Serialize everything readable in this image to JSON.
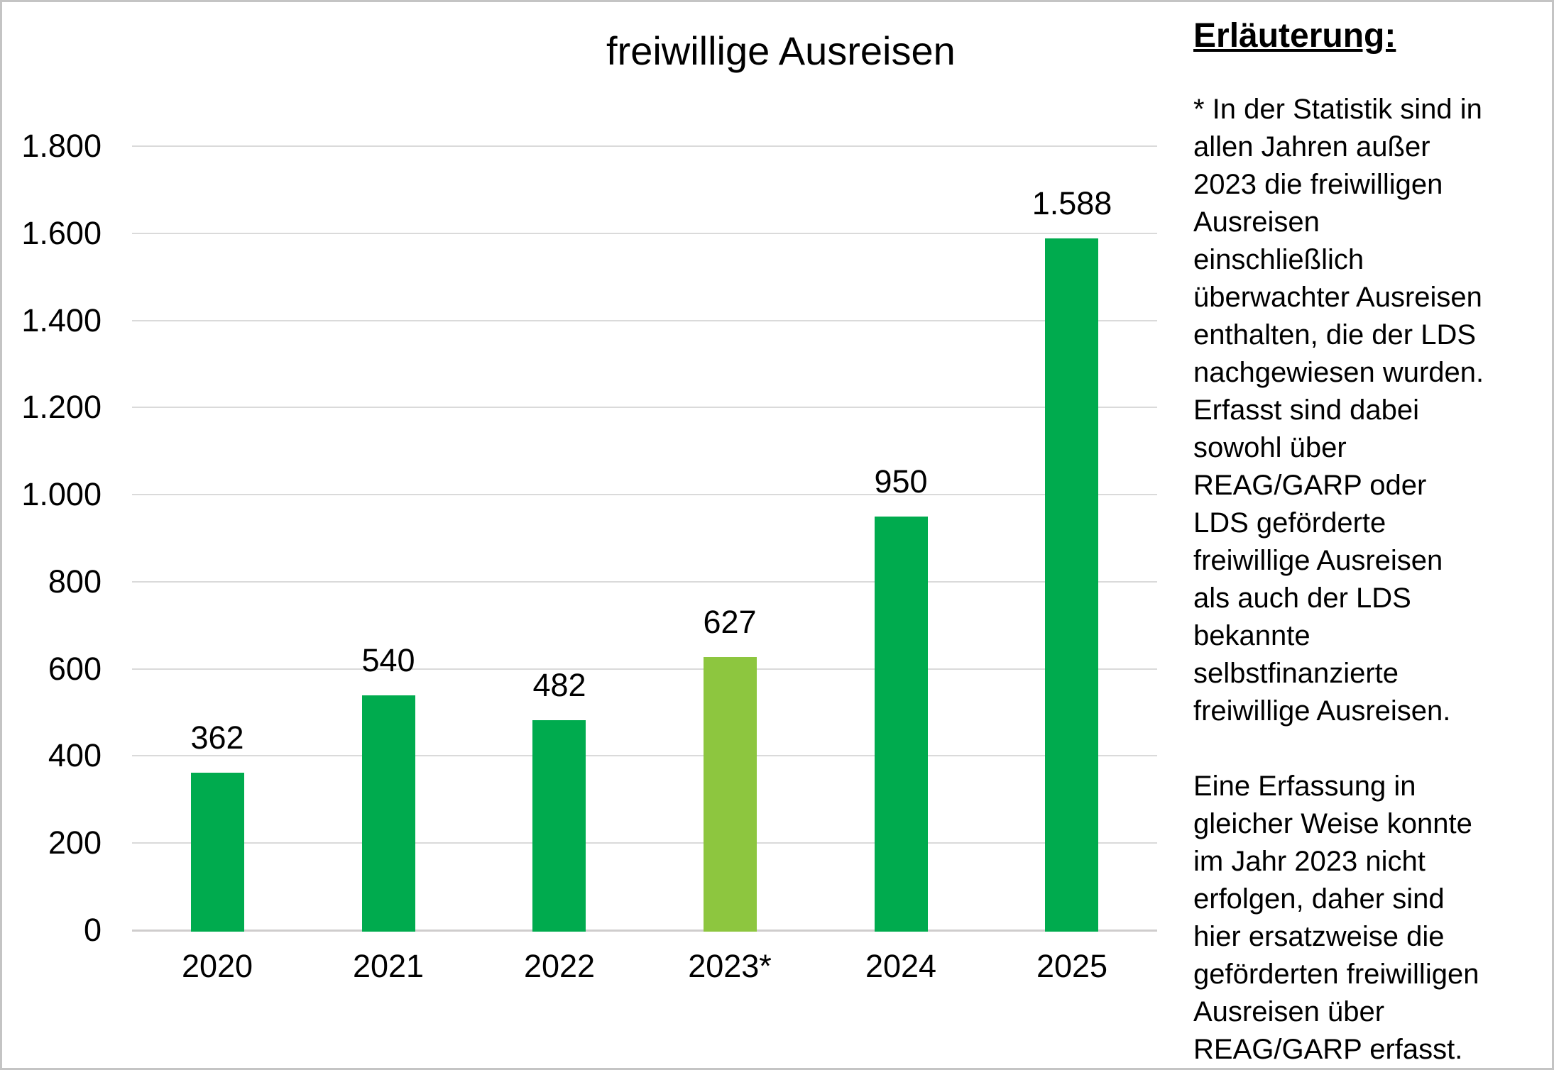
{
  "chart_data": {
    "type": "bar",
    "title": "freiwillige Ausreisen",
    "categories": [
      "2020",
      "2021",
      "2022",
      "2023*",
      "2024",
      "2025"
    ],
    "values": [
      362,
      540,
      482,
      627,
      950,
      1588
    ],
    "value_labels": [
      "362",
      "540",
      "482",
      "627",
      "950",
      "1.588"
    ],
    "xlabel": "",
    "ylabel": "",
    "ylim": [
      0,
      1800
    ],
    "ytick_step": 200,
    "yticks": [
      "0",
      "200",
      "400",
      "600",
      "800",
      "1.000",
      "1.200",
      "1.400",
      "1.600",
      "1.800"
    ],
    "grid": "horizontal",
    "legend": "none",
    "bar_colors": [
      "#00AB4E",
      "#00AB4E",
      "#00AB4E",
      "#8DC63F",
      "#00AB4E",
      "#00AB4E"
    ],
    "colors": {
      "gridline": "#DADADA",
      "axis_line": "#CFCDCD",
      "text": "#000000"
    }
  },
  "sidebar": {
    "heading": "Erläuterung:",
    "paragraph1": "* In der Statistik sind in\nallen Jahren außer\n2023 die freiwilligen\nAusreisen\neinschließlich\nüberwachter Ausreisen\nenthalten, die der LDS\nnachgewiesen wurden.\nErfasst sind dabei\nsowohl über\nREAG/GARP oder\nLDS geförderte\nfreiwillige Ausreisen\nals auch der LDS\nbekannte\nselbstfinanzierte\nfreiwillige Ausreisen.",
    "paragraph2": "Eine Erfassung in\ngleicher Weise konnte\nim Jahr 2023 nicht\nerfolgen, daher sind\nhier ersatzweise die\ngeförderten freiwilligen\nAusreisen über\nREAG/GARP erfasst."
  }
}
